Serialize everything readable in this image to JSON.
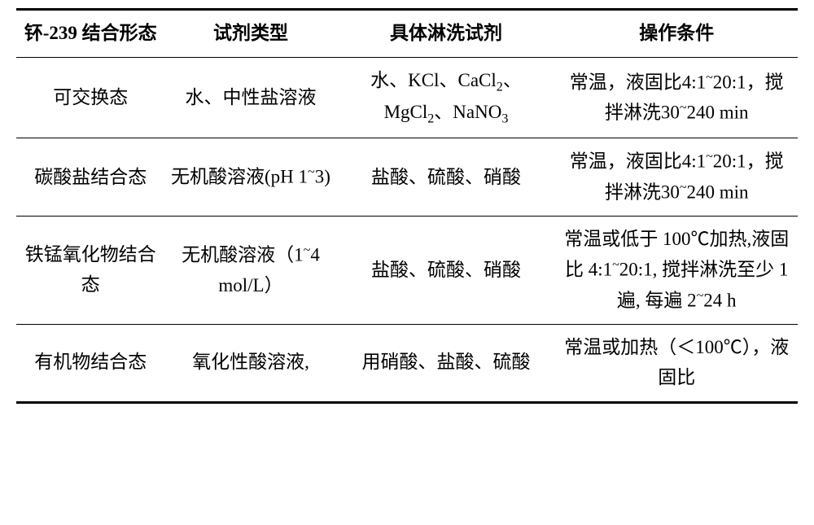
{
  "table": {
    "headers": {
      "col1": "钚-239 结合形态",
      "col2": "试剂类型",
      "col3": "具体淋洗试剂",
      "col4": "操作条件"
    },
    "rows": [
      {
        "col1": "可交换态",
        "col2": "水、中性盐溶液",
        "col3_html": "水、KCl、CaCl<sub class='sub'>2</sub>、MgCl<sub class='sub'>2</sub>、NaNO<sub class='sub'>3</sub>",
        "col4_html": "常温，液固比4:1<sup class='sup'>~</sup>20:1，搅拌淋洗30<sup class='sup'>~</sup>240 min"
      },
      {
        "col1": "碳酸盐结合态",
        "col2_html": "无机酸溶液(pH 1<sup class='sup'>~</sup>3)",
        "col3": "盐酸、硫酸、硝酸",
        "col4_html": "常温，液固比4:1<sup class='sup'>~</sup>20:1，搅拌淋洗30<sup class='sup'>~</sup>240 min"
      },
      {
        "col1": "铁锰氧化物结合态",
        "col2_html": "无机酸溶液（1<sup class='sup'>~</sup>4 mol/L）",
        "col3": "盐酸、硫酸、硝酸",
        "col4_html": "常温或低于 100℃加热,液固比 4:1<sup class='sup'>~</sup>20:1, 搅拌淋洗至少 1 遍, 每遍 2<sup class='sup'>~</sup>24 h"
      },
      {
        "col1": "有机物结合态",
        "col2": "氧化性酸溶液,",
        "col3": "用硝酸、盐酸、硫酸",
        "col4": "常温或加热（＜100℃），液固比"
      }
    ],
    "styling": {
      "border_color": "#000000",
      "header_border_top_width": 3,
      "header_border_bottom_width": 1.5,
      "row_border_width": 1.5,
      "last_row_border_width": 3,
      "font_family": "SimSun",
      "header_font_weight": "bold",
      "font_size": 23,
      "text_color": "#000000",
      "background_color": "#ffffff",
      "column_widths_pct": [
        19,
        22,
        28,
        31
      ],
      "text_align": "center",
      "line_height": 1.6
    }
  }
}
